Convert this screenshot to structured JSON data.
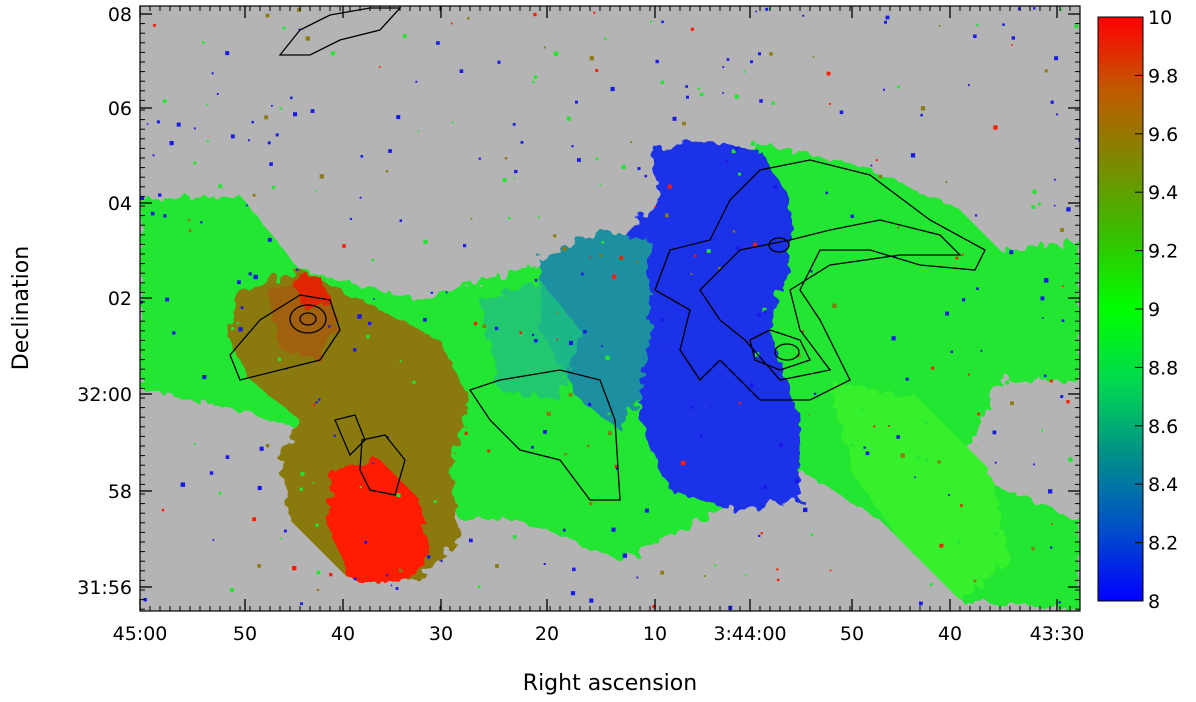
{
  "chart_data": {
    "type": "heatmap",
    "title": "",
    "xlabel": "Right ascension",
    "ylabel": "Declination",
    "x_ticks": [
      "45:00",
      "50",
      "40",
      "30",
      "20",
      "10",
      "3:44:00",
      "50",
      "40",
      "43:30"
    ],
    "y_ticks": [
      "31:56",
      "58",
      "32:00",
      "02",
      "04",
      "06",
      "08"
    ],
    "colorbar": {
      "min": 8,
      "max": 10,
      "ticks": [
        "8",
        "8.2",
        "8.4",
        "8.6",
        "8.8",
        "9",
        "9.2",
        "9.4",
        "9.6",
        "9.8",
        "10"
      ],
      "colors": [
        "#0000ff",
        "#0050c8",
        "#009088",
        "#00d850",
        "#00ff00",
        "#36c000",
        "#7c8a00",
        "#c05a00",
        "#ff0000"
      ]
    },
    "background_color": "#b4b4b4",
    "contours": true,
    "grid": false
  }
}
